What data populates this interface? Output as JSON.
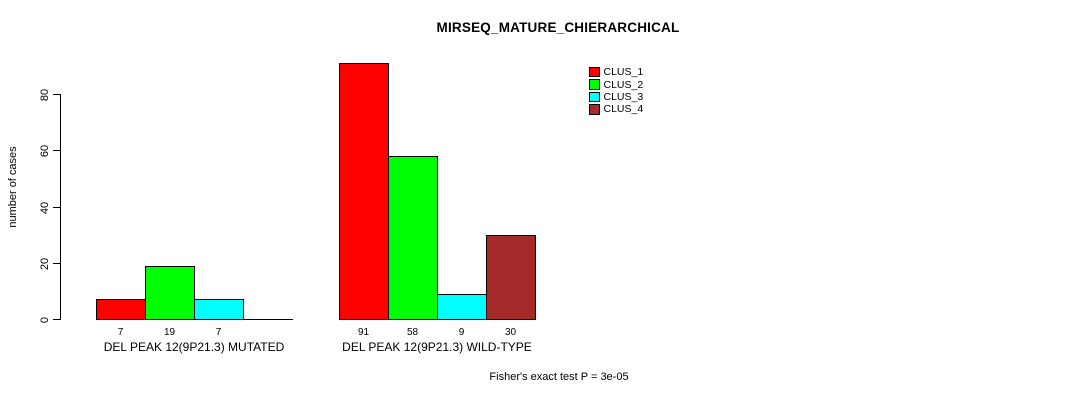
{
  "chart_data": {
    "type": "bar",
    "title": "MIRSEQ_MATURE_CHIERARCHICAL",
    "xlabel": "",
    "ylabel": "number of cases",
    "ylim": [
      0,
      91
    ],
    "yticks": [
      0,
      20,
      40,
      60,
      80
    ],
    "grid": false,
    "legend_position": "top-right",
    "categories": [
      "DEL PEAK 12(9P21.3) MUTATED",
      "DEL PEAK 12(9P21.3) WILD-TYPE"
    ],
    "series": [
      {
        "name": "CLUS_1",
        "color": "#ff0000",
        "values": [
          7,
          91
        ]
      },
      {
        "name": "CLUS_2",
        "color": "#00ff00",
        "values": [
          19,
          58
        ]
      },
      {
        "name": "CLUS_3",
        "color": "#00ffff",
        "values": [
          7,
          9
        ]
      },
      {
        "name": "CLUS_4",
        "color": "#a52a2a",
        "values": [
          0,
          30
        ]
      }
    ],
    "bar_value_labels": [
      [
        "7",
        "19",
        "7",
        ""
      ],
      [
        "91",
        "58",
        "9",
        "30"
      ]
    ],
    "annotation": "Fisher's exact test P = 3e-05",
    "axis_color": "#000000",
    "background_color": "#ffffff"
  }
}
